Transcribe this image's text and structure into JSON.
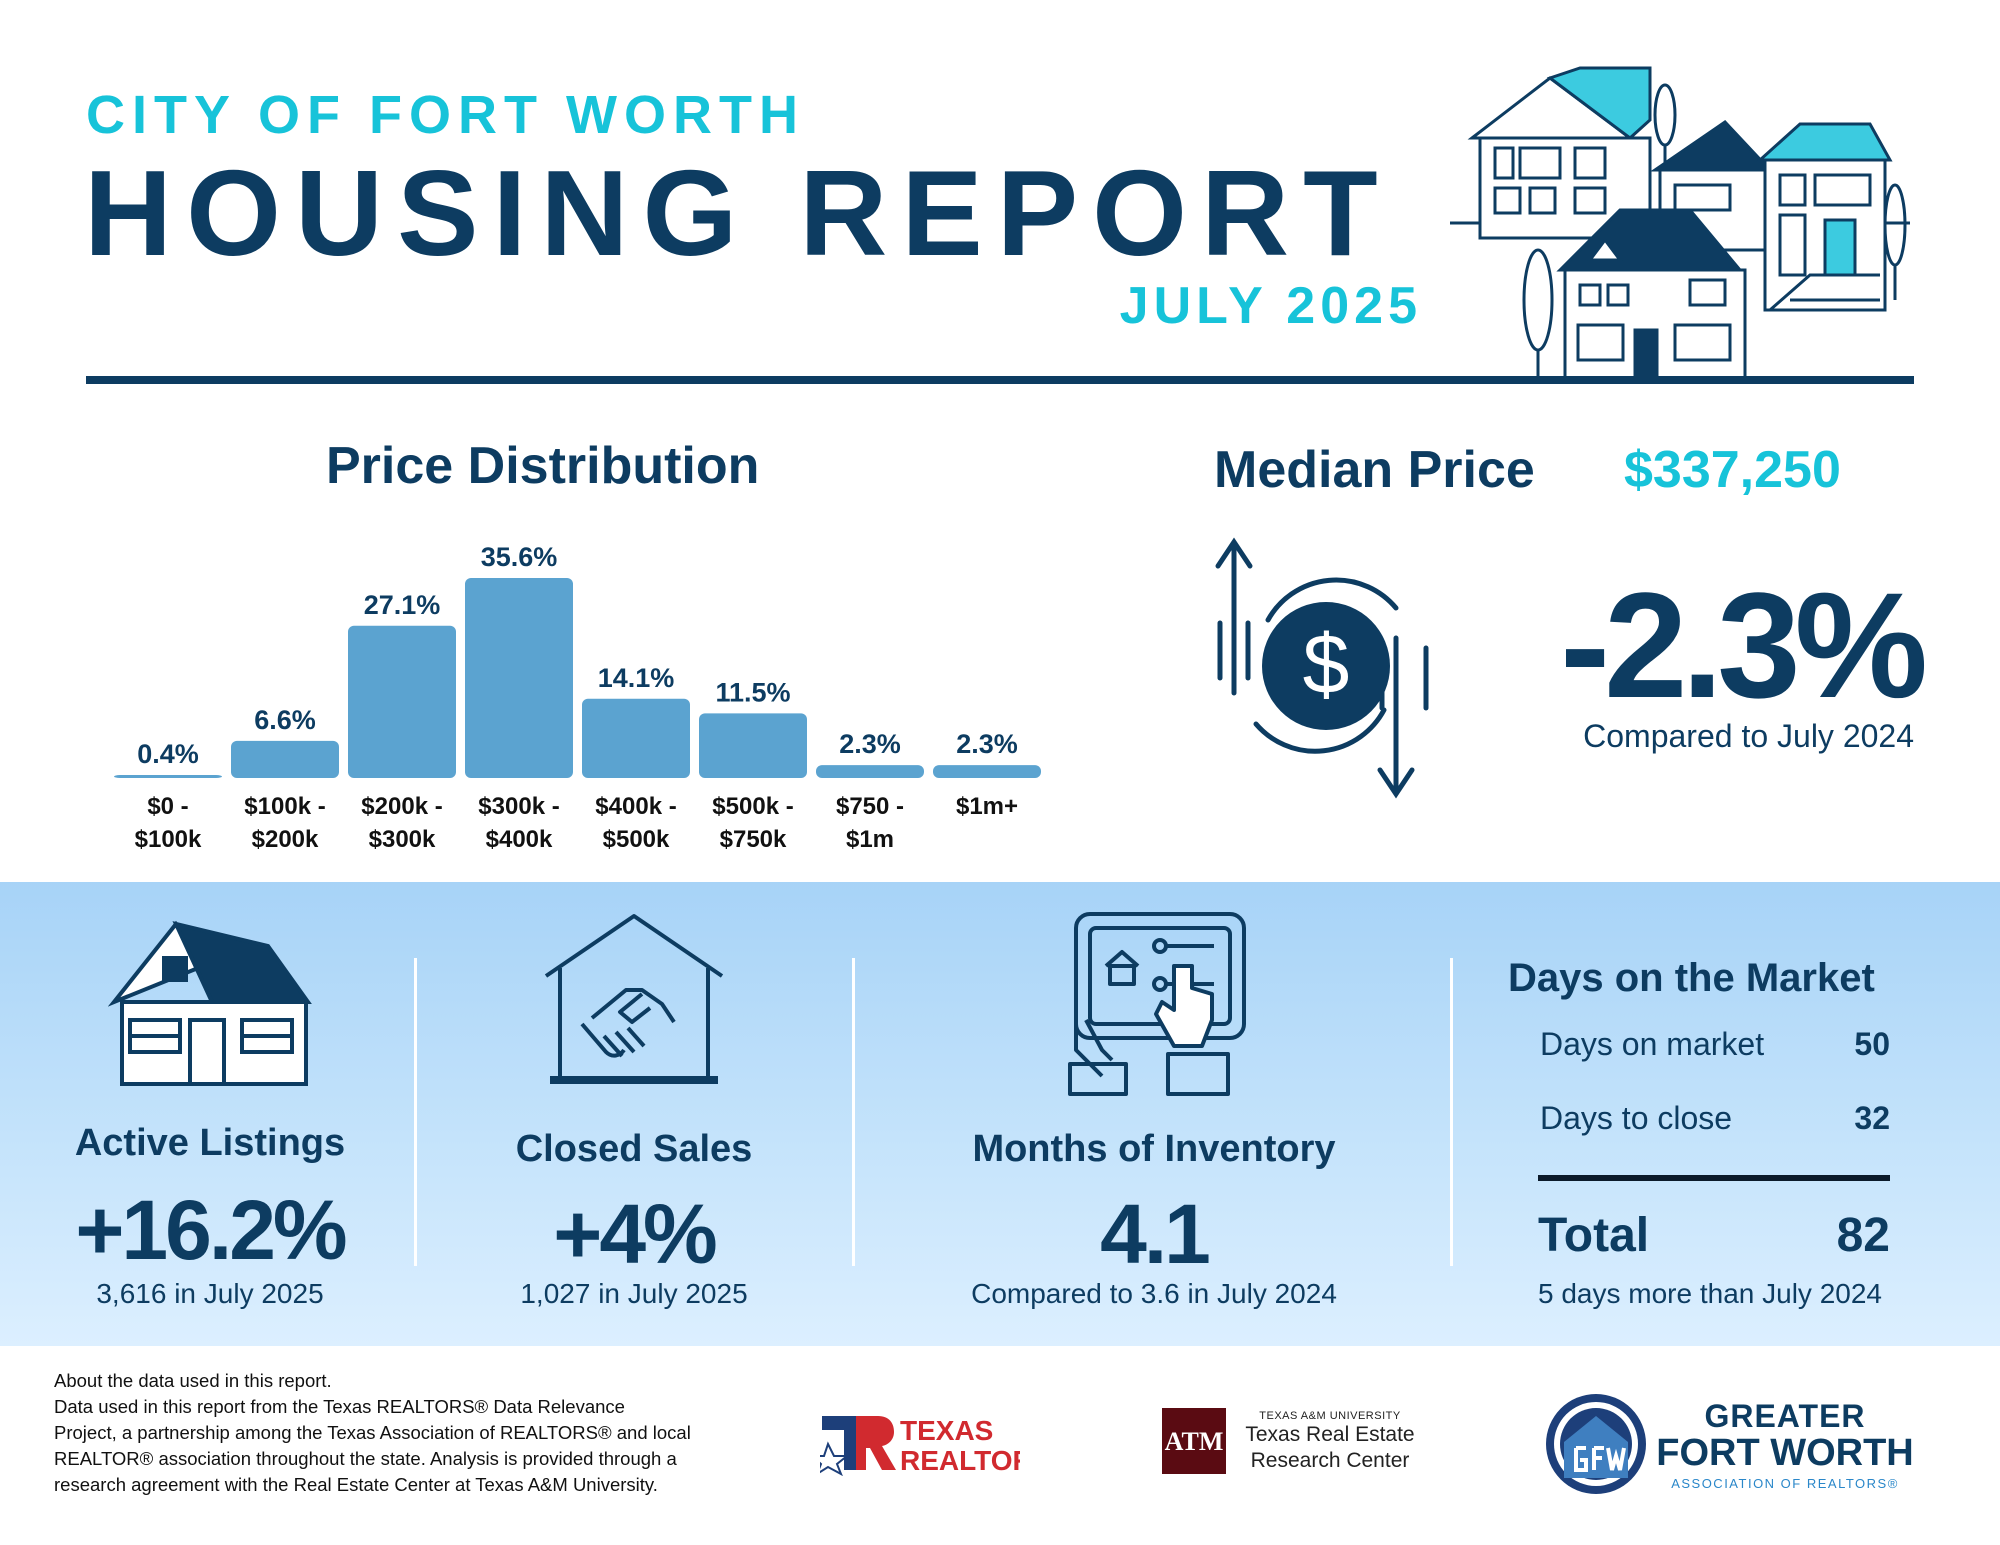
{
  "header": {
    "city": "CITY OF FORT WORTH",
    "title": "HOUSING REPORT",
    "month": "JULY 2025"
  },
  "price_distribution": {
    "heading": "Price Distribution"
  },
  "chart_data": {
    "type": "bar",
    "categories": [
      [
        "$0 -",
        "$100k"
      ],
      [
        "$100k -",
        "$200k"
      ],
      [
        "$200k -",
        "$300k"
      ],
      [
        "$300k -",
        "$400k"
      ],
      [
        "$400k -",
        "$500k"
      ],
      [
        "$500k -",
        "$750k"
      ],
      [
        "$750 -",
        "$1m"
      ],
      [
        "$1m+"
      ]
    ],
    "values": [
      0.4,
      6.6,
      27.1,
      35.6,
      14.1,
      11.5,
      2.3,
      2.3
    ],
    "value_labels": [
      "0.4%",
      "6.6%",
      "27.1%",
      "35.6%",
      "14.1%",
      "11.5%",
      "2.3%",
      "2.3%"
    ],
    "ylim": [
      0,
      35.6
    ],
    "grid": false,
    "bar_color": "#5ba3d0"
  },
  "median": {
    "label": "Median Price",
    "value": "$337,250",
    "change": "-2.3%",
    "compare": "Compared to July 2024",
    "icon": "dollar-cycle-icon"
  },
  "stats": {
    "active_listings": {
      "title": "Active Listings",
      "value": "+16.2%",
      "sub": "3,616 in July 2025",
      "icon": "house-icon"
    },
    "closed_sales": {
      "title": "Closed Sales",
      "value": "+4%",
      "sub": "1,027 in July 2025",
      "icon": "handshake-house-icon"
    },
    "months_inventory": {
      "title": "Months of Inventory",
      "value": "4.1",
      "sub": "Compared to 3.6 in July 2024",
      "icon": "tablet-icon"
    },
    "days_on_market": {
      "title": "Days on the Market",
      "rows": [
        {
          "label": "Days on market",
          "value": "50"
        },
        {
          "label": "Days to close",
          "value": "32"
        }
      ],
      "total_label": "Total",
      "total_value": "82",
      "note": "5 days more than July 2024"
    }
  },
  "footer": {
    "about_lines": [
      "About the data used in this report.",
      "Data used in this report from the Texas REALTORS® Data Relevance",
      "Project, a partnership among the Texas Association of REALTORS® and local",
      "REALTOR® association throughout the state. Analysis is provided through a",
      "research agreement with the Real Estate Center at Texas A&M University."
    ],
    "texas_realtors": [
      "TEXAS",
      "REALTORS"
    ],
    "tamu": {
      "small": "TEXAS A&M UNIVERSITY",
      "line1": "Texas Real Estate",
      "line2": "Research Center"
    },
    "gfw": {
      "line1": "GREATER",
      "line2": "FORT WORTH",
      "line3": "ASSOCIATION OF REALTORS®"
    }
  },
  "colors": {
    "navy": "#0d3c61",
    "cyan": "#17c3d9",
    "bar": "#5ba3d0",
    "band_top": "#a7d3f7"
  }
}
